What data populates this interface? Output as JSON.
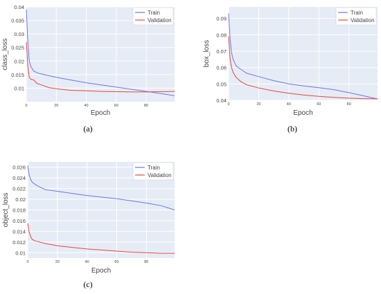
{
  "colors": {
    "train": "#6f72e8",
    "validation": "#e8453c",
    "plot_bg": "#e5ecf6",
    "grid": "#ffffff",
    "legend_bg": "#ffffff",
    "legend_border": "#cccccc"
  },
  "chart_data": [
    {
      "type": "line",
      "panel_label": "(a)",
      "title": "",
      "xlabel": "Epoch",
      "ylabel": "class_loss",
      "xlim": [
        0,
        99
      ],
      "ylim": [
        0.005,
        0.04
      ],
      "x_ticks": [
        0,
        20,
        40,
        60,
        80
      ],
      "y_ticks": [
        0.01,
        0.015,
        0.02,
        0.025,
        0.03,
        0.035,
        0.04
      ],
      "y_tick_labels": [
        "0.01",
        "0.015",
        "0.02",
        "0.025",
        "0.03",
        "0.035",
        "0.04"
      ],
      "grid": true,
      "legend_position": "top-right",
      "series": [
        {
          "name": "Train",
          "x": [
            0,
            1,
            2,
            3,
            5,
            8,
            12,
            20,
            30,
            40,
            50,
            60,
            70,
            80,
            90,
            99
          ],
          "y": [
            0.039,
            0.027,
            0.02,
            0.018,
            0.0163,
            0.0155,
            0.015,
            0.014,
            0.013,
            0.012,
            0.0112,
            0.0104,
            0.0096,
            0.0088,
            0.008,
            0.0072
          ]
        },
        {
          "name": "Validation",
          "x": [
            0,
            1,
            2,
            3,
            5,
            7,
            10,
            15,
            20,
            30,
            40,
            50,
            60,
            70,
            80,
            90,
            99
          ],
          "y": [
            0.027,
            0.018,
            0.014,
            0.0133,
            0.013,
            0.0118,
            0.0112,
            0.0102,
            0.0098,
            0.0092,
            0.009,
            0.0088,
            0.0087,
            0.0086,
            0.0086,
            0.0087,
            0.0088
          ]
        }
      ]
    },
    {
      "type": "line",
      "panel_label": "(b)",
      "title": "",
      "xlabel": "Epoch",
      "ylabel": "box_loss",
      "xlim": [
        0,
        99
      ],
      "ylim": [
        0.04,
        0.097
      ],
      "x_ticks": [
        0,
        20,
        40,
        60,
        80
      ],
      "y_ticks": [
        0.04,
        0.05,
        0.06,
        0.07,
        0.08,
        0.09
      ],
      "y_tick_labels": [
        "0.04",
        "0.05",
        "0.06",
        "0.07",
        "0.08",
        "0.09"
      ],
      "grid": true,
      "legend_position": "top-right",
      "series": [
        {
          "name": "Train",
          "x": [
            0,
            1,
            2,
            3,
            5,
            8,
            12,
            20,
            30,
            40,
            50,
            60,
            70,
            80,
            90,
            99
          ],
          "y": [
            0.093,
            0.077,
            0.069,
            0.065,
            0.061,
            0.059,
            0.0565,
            0.0545,
            0.052,
            0.05,
            0.0488,
            0.0477,
            0.0465,
            0.0447,
            0.0427,
            0.0408
          ]
        },
        {
          "name": "Validation",
          "x": [
            0,
            1,
            2,
            3,
            5,
            8,
            12,
            20,
            30,
            40,
            50,
            60,
            70,
            80,
            90,
            99
          ],
          "y": [
            0.079,
            0.065,
            0.06,
            0.057,
            0.054,
            0.0515,
            0.0495,
            0.0475,
            0.0457,
            0.0443,
            0.0432,
            0.0424,
            0.0418,
            0.0413,
            0.041,
            0.0409
          ]
        }
      ]
    },
    {
      "type": "line",
      "panel_label": "(c)",
      "title": "",
      "xlabel": "Epoch",
      "ylabel": "object_loss",
      "xlim": [
        0,
        99
      ],
      "ylim": [
        0.009,
        0.027
      ],
      "x_ticks": [
        0,
        20,
        40,
        60,
        80
      ],
      "y_ticks": [
        0.01,
        0.012,
        0.014,
        0.016,
        0.018,
        0.02,
        0.022,
        0.024,
        0.026
      ],
      "y_tick_labels": [
        "0.01",
        "0.012",
        "0.014",
        "0.016",
        "0.018",
        "0.02",
        "0.022",
        "0.024",
        "0.026"
      ],
      "grid": true,
      "legend_position": "top-right",
      "series": [
        {
          "name": "Train",
          "x": [
            0,
            1,
            2,
            3,
            5,
            8,
            12,
            20,
            30,
            40,
            50,
            60,
            70,
            80,
            90,
            99
          ],
          "y": [
            0.0263,
            0.0245,
            0.0237,
            0.0232,
            0.0228,
            0.0223,
            0.0218,
            0.0215,
            0.0211,
            0.0207,
            0.0204,
            0.0201,
            0.0197,
            0.0193,
            0.0188,
            0.018
          ]
        },
        {
          "name": "Validation",
          "x": [
            0,
            1,
            2,
            3,
            5,
            8,
            12,
            20,
            30,
            40,
            50,
            60,
            70,
            80,
            90,
            99
          ],
          "y": [
            0.0155,
            0.0138,
            0.013,
            0.0125,
            0.0122,
            0.012,
            0.0117,
            0.0113,
            0.011,
            0.0107,
            0.0105,
            0.0103,
            0.0101,
            0.01,
            0.0099,
            0.0099
          ]
        }
      ]
    }
  ]
}
